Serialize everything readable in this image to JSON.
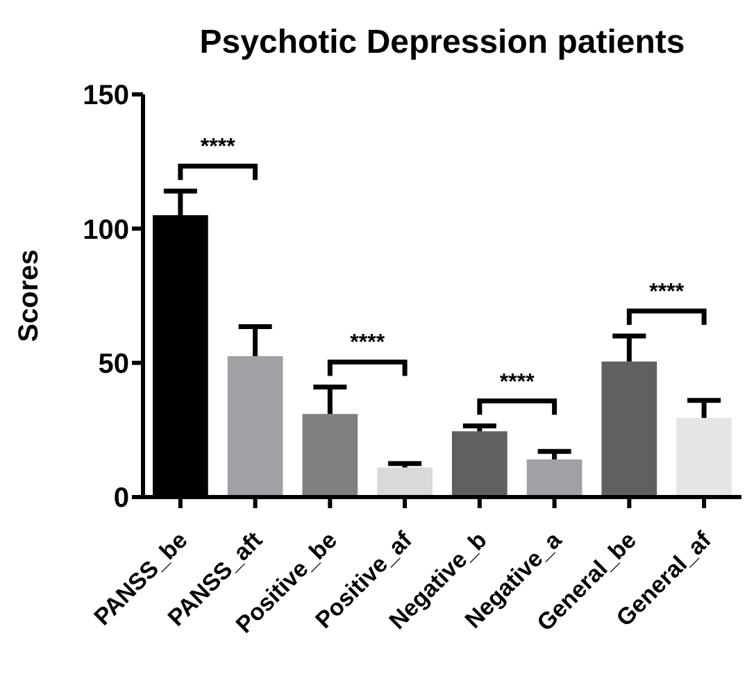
{
  "chart_data": {
    "type": "bar",
    "title": "Psychotic Depression patients",
    "ylabel": "Scores",
    "categories": [
      "PANSS_be",
      "PANSS_aft",
      "Positive_be",
      "Positive_af",
      "Negative_b",
      "Negative_a",
      "General_be",
      "General_af"
    ],
    "values": [
      105,
      52.5,
      31,
      11,
      24.5,
      14,
      50.5,
      29.5
    ],
    "errors": [
      [
        105,
        114
      ],
      [
        52.5,
        63.5
      ],
      [
        31,
        41
      ],
      [
        11,
        12.5
      ],
      [
        24.5,
        26.5
      ],
      [
        14,
        17
      ],
      [
        50.5,
        60
      ],
      [
        29.5,
        36
      ]
    ],
    "colors": [
      "#000000",
      "#a0a0a5",
      "#808080",
      "#d9d9d9",
      "#606060",
      "#a0a0a5",
      "#606060",
      "#e6e6e6"
    ],
    "ylim": [
      0,
      150
    ],
    "yticks": [
      0,
      50,
      100,
      150
    ],
    "grid": false,
    "annotations": [
      "****",
      "****",
      "****",
      "****"
    ]
  }
}
